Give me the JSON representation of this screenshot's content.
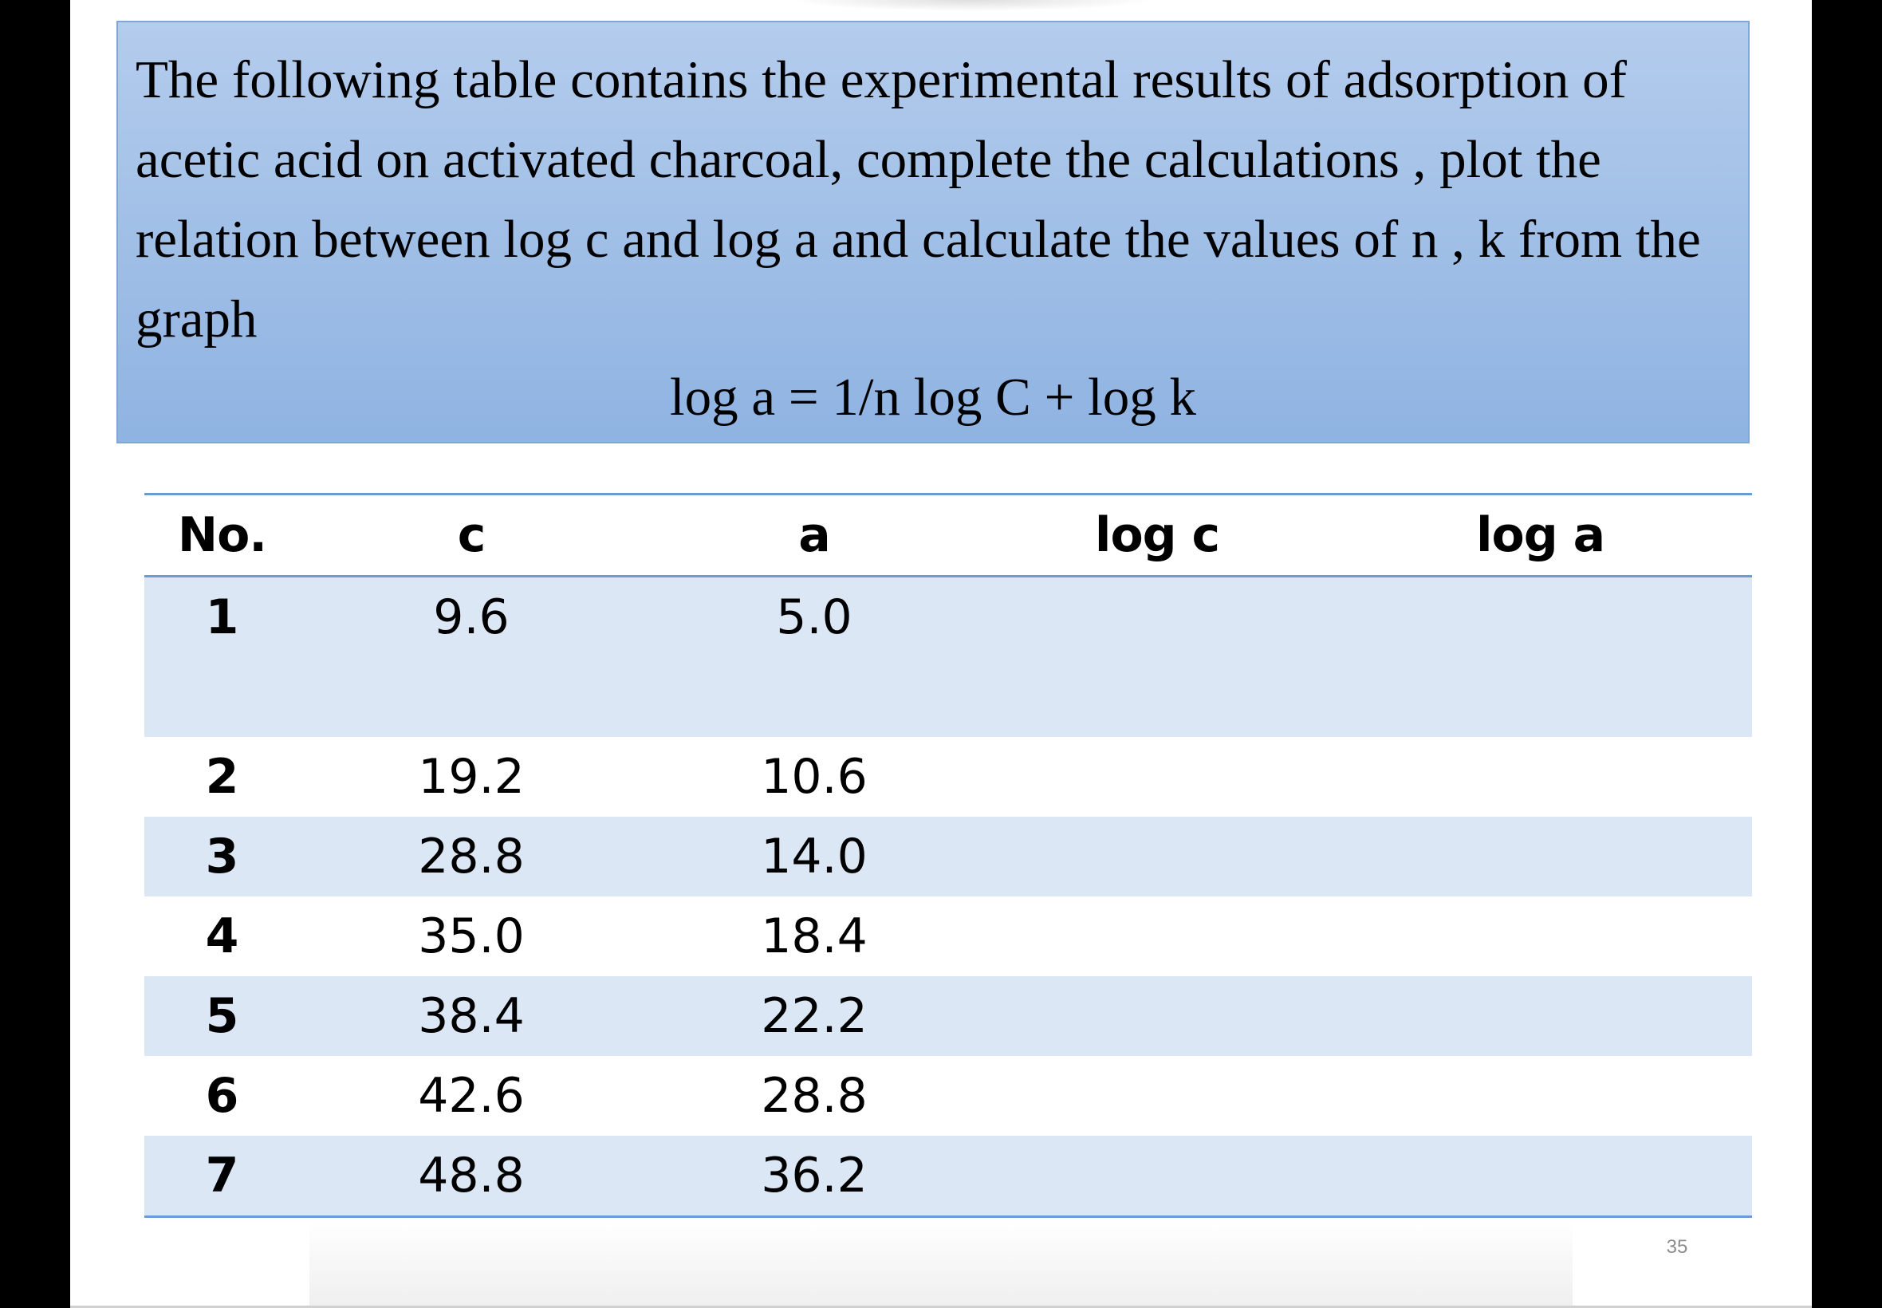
{
  "problem": {
    "text": "The following table contains the experimental results of adsorption of acetic acid on activated charcoal, complete the calculations , plot the relation between log c and log a and calculate the values of  n , k from the graph",
    "equation": "log a = 1/n log C + log k"
  },
  "table": {
    "headers": {
      "no": "No.",
      "c": "c",
      "a": "a",
      "log_c": "log c",
      "log_a": "log a"
    },
    "rows": [
      {
        "no": "1",
        "c": "9.6",
        "a": "5.0",
        "log_c": "",
        "log_a": ""
      },
      {
        "no": "2",
        "c": "19.2",
        "a": "10.6",
        "log_c": "",
        "log_a": ""
      },
      {
        "no": "3",
        "c": "28.8",
        "a": "14.0",
        "log_c": "",
        "log_a": ""
      },
      {
        "no": "4",
        "c": "35.0",
        "a": "18.4",
        "log_c": "",
        "log_a": ""
      },
      {
        "no": "5",
        "c": "38.4",
        "a": "22.2",
        "log_c": "",
        "log_a": ""
      },
      {
        "no": "6",
        "c": "42.6",
        "a": "28.8",
        "log_c": "",
        "log_a": ""
      },
      {
        "no": "7",
        "c": "48.8",
        "a": "36.2",
        "log_c": "",
        "log_a": ""
      }
    ]
  },
  "page_number": "35",
  "colors": {
    "box_fill": "#9fbee6",
    "table_rule": "#6b9bd6",
    "row_shade": "#dce7f5"
  }
}
